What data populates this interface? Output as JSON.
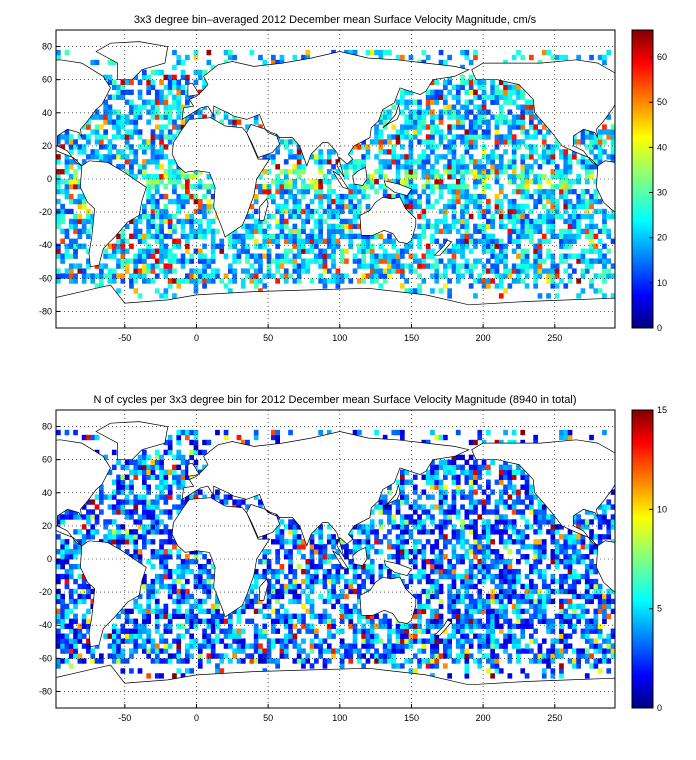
{
  "chart_data": [
    {
      "type": "heatmap",
      "title": "3x3 degree bin–averaged 2012 December mean Surface Velocity Magnitude, cm/s",
      "xlabel": "",
      "ylabel": "",
      "xlim": [
        -98,
        292
      ],
      "ylim": [
        -90,
        90
      ],
      "xticks": [
        -50,
        0,
        50,
        100,
        150,
        200,
        250
      ],
      "yticks": [
        -80,
        -60,
        -40,
        -20,
        0,
        20,
        40,
        60,
        80
      ],
      "colorbar": {
        "min": 0,
        "max": 66,
        "ticks": [
          0,
          10,
          20,
          30,
          40,
          50,
          60
        ],
        "colormap": "jet"
      },
      "grid": true,
      "bin_size_deg": 3
    },
    {
      "type": "heatmap",
      "title": "N of cycles per 3x3 degree bin for 2012 December mean Surface Velocity Magnitude (8940 in total)",
      "xlabel": "",
      "ylabel": "",
      "xlim": [
        -98,
        292
      ],
      "ylim": [
        -90,
        90
      ],
      "xticks": [
        -50,
        0,
        50,
        100,
        150,
        200,
        250
      ],
      "yticks": [
        -80,
        -60,
        -40,
        -20,
        0,
        20,
        40,
        60,
        80
      ],
      "colorbar": {
        "min": 0,
        "max": 15,
        "ticks": [
          0,
          5,
          10,
          15
        ],
        "colormap": "jet"
      },
      "grid": true,
      "bin_size_deg": 3
    }
  ]
}
